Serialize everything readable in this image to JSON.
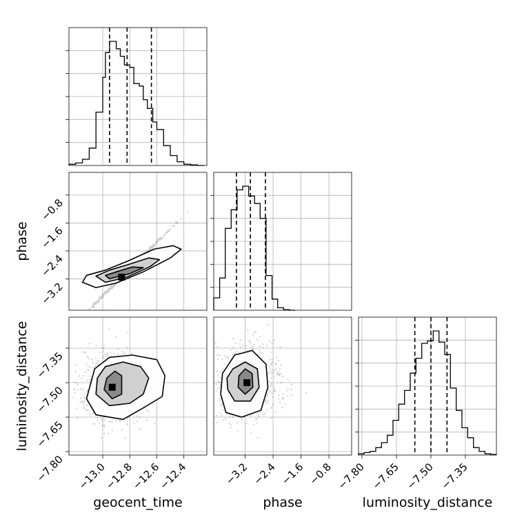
{
  "chart_data": {
    "type": "corner",
    "parameters": [
      "geocent_time",
      "phase",
      "luminosity_distance"
    ],
    "grid": true,
    "quantile_lines_style": "dashed",
    "ranges": {
      "geocent_time": [
        -13.25,
        -12.23
      ],
      "phase": [
        -4.1,
        -0.15
      ],
      "luminosity_distance": [
        -7.815,
        -7.215
      ]
    },
    "tick_labels": {
      "geocent_time": [
        "−13.0",
        "−12.8",
        "−12.6",
        "−12.4"
      ],
      "phase": [
        "−3.2",
        "−2.4",
        "−1.6",
        "−0.8"
      ],
      "luminosity_distance": [
        "−7.80",
        "−7.65",
        "−7.50",
        "−7.35"
      ]
    },
    "ticks": {
      "geocent_time": [
        -13.0,
        -12.8,
        -12.6,
        -12.4
      ],
      "phase": [
        -3.2,
        -2.4,
        -1.6,
        -0.8
      ],
      "luminosity_distance": [
        -7.8,
        -7.65,
        -7.5,
        -7.35
      ]
    },
    "quantiles": {
      "geocent_time": [
        -12.95,
        -12.82,
        -12.64
      ],
      "phase": [
        -3.45,
        -3.05,
        -2.62
      ],
      "luminosity_distance": [
        -7.57,
        -7.5,
        -7.43
      ]
    },
    "histograms": {
      "geocent_time": {
        "edges": [
          -13.25,
          -13.2,
          -13.15,
          -13.1,
          -13.05,
          -13.0,
          -12.98,
          -12.95,
          -12.9,
          -12.87,
          -12.84,
          -12.8,
          -12.77,
          -12.73,
          -12.7,
          -12.67,
          -12.63,
          -12.6,
          -12.55,
          -12.5,
          -12.45,
          -12.4,
          -12.35,
          -12.3,
          -12.25
        ],
        "counts": [
          0.01,
          0.02,
          0.05,
          0.14,
          0.43,
          0.71,
          0.91,
          1.0,
          0.94,
          0.88,
          0.81,
          0.79,
          0.66,
          0.64,
          0.53,
          0.46,
          0.35,
          0.29,
          0.16,
          0.08,
          0.03,
          0.01,
          0.005,
          0.0
        ]
      },
      "phase": {
        "edges": [
          -4.1,
          -3.93,
          -3.77,
          -3.6,
          -3.43,
          -3.27,
          -3.1,
          -2.93,
          -2.77,
          -2.6,
          -2.43,
          -2.27,
          -2.1,
          -1.93,
          -1.77
        ],
        "counts": [
          0.1,
          0.26,
          0.66,
          0.81,
          0.97,
          1.0,
          0.92,
          0.86,
          0.74,
          0.28,
          0.09,
          0.02,
          0.005,
          0.0
        ]
      },
      "luminosity_distance": {
        "edges": [
          -7.815,
          -7.79,
          -7.765,
          -7.74,
          -7.715,
          -7.69,
          -7.665,
          -7.64,
          -7.615,
          -7.59,
          -7.565,
          -7.54,
          -7.515,
          -7.49,
          -7.465,
          -7.44,
          -7.415,
          -7.39,
          -7.365,
          -7.34,
          -7.315,
          -7.29,
          -7.265,
          -7.24,
          -7.215
        ],
        "counts": [
          0.01,
          0.02,
          0.03,
          0.06,
          0.1,
          0.16,
          0.28,
          0.41,
          0.52,
          0.66,
          0.78,
          0.9,
          0.92,
          1.0,
          0.91,
          0.81,
          0.54,
          0.36,
          0.22,
          0.14,
          0.06,
          0.03,
          0.01,
          0.005
        ]
      }
    },
    "scatter_density": {
      "phase_vs_geocent_time": {
        "peak": [
          -12.86,
          -3.15
        ],
        "contour_levels": [
          [
            [
              -13.05,
              -3.45
            ],
            [
              -12.9,
              -3.32
            ],
            [
              -12.7,
              -3.0
            ],
            [
              -12.5,
              -2.6
            ],
            [
              -12.42,
              -2.35
            ],
            [
              -12.48,
              -2.25
            ],
            [
              -12.62,
              -2.35
            ],
            [
              -12.82,
              -2.7
            ],
            [
              -12.98,
              -2.95
            ],
            [
              -13.12,
              -3.1
            ],
            [
              -13.15,
              -3.3
            ]
          ],
          [
            [
              -12.98,
              -3.3
            ],
            [
              -12.82,
              -3.15
            ],
            [
              -12.65,
              -2.85
            ],
            [
              -12.58,
              -2.65
            ],
            [
              -12.66,
              -2.6
            ],
            [
              -12.82,
              -2.8
            ],
            [
              -12.95,
              -2.95
            ],
            [
              -13.05,
              -3.12
            ]
          ],
          [
            [
              -12.95,
              -3.2
            ],
            [
              -12.8,
              -3.05
            ],
            [
              -12.7,
              -2.88
            ],
            [
              -12.78,
              -2.86
            ],
            [
              -12.9,
              -3.0
            ],
            [
              -12.98,
              -3.1
            ]
          ]
        ]
      },
      "luminosity_distance_vs_geocent_time": {
        "peak": [
          -12.93,
          -7.52
        ],
        "contour_levels": [
          [
            [
              -13.12,
              -7.57
            ],
            [
              -13.05,
              -7.64
            ],
            [
              -12.85,
              -7.66
            ],
            [
              -12.7,
              -7.61
            ],
            [
              -12.56,
              -7.56
            ],
            [
              -12.54,
              -7.47
            ],
            [
              -12.6,
              -7.4
            ],
            [
              -12.78,
              -7.38
            ],
            [
              -12.95,
              -7.39
            ],
            [
              -13.06,
              -7.44
            ]
          ],
          [
            [
              -13.05,
              -7.55
            ],
            [
              -12.95,
              -7.6
            ],
            [
              -12.8,
              -7.59
            ],
            [
              -12.7,
              -7.55
            ],
            [
              -12.66,
              -7.48
            ],
            [
              -12.72,
              -7.43
            ],
            [
              -12.85,
              -7.41
            ],
            [
              -12.98,
              -7.43
            ],
            [
              -13.04,
              -7.48
            ]
          ],
          [
            [
              -12.99,
              -7.53
            ],
            [
              -12.93,
              -7.57
            ],
            [
              -12.86,
              -7.55
            ],
            [
              -12.86,
              -7.47
            ],
            [
              -12.91,
              -7.45
            ],
            [
              -12.97,
              -7.48
            ]
          ]
        ]
      },
      "luminosity_distance_vs_phase": {
        "peak": [
          -3.15,
          -7.5
        ],
        "contour_levels": [
          [
            [
              -3.9,
              -7.55
            ],
            [
              -3.75,
              -7.63
            ],
            [
              -3.3,
              -7.65
            ],
            [
              -2.75,
              -7.62
            ],
            [
              -2.55,
              -7.52
            ],
            [
              -2.6,
              -7.42
            ],
            [
              -3.0,
              -7.36
            ],
            [
              -3.5,
              -7.38
            ],
            [
              -3.85,
              -7.46
            ]
          ],
          [
            [
              -3.7,
              -7.53
            ],
            [
              -3.5,
              -7.58
            ],
            [
              -3.05,
              -7.58
            ],
            [
              -2.8,
              -7.52
            ],
            [
              -2.85,
              -7.44
            ],
            [
              -3.2,
              -7.41
            ],
            [
              -3.55,
              -7.44
            ],
            [
              -3.72,
              -7.48
            ]
          ],
          [
            [
              -3.4,
              -7.52
            ],
            [
              -3.2,
              -7.55
            ],
            [
              -2.98,
              -7.52
            ],
            [
              -3.0,
              -7.46
            ],
            [
              -3.2,
              -7.44
            ],
            [
              -3.38,
              -7.47
            ]
          ]
        ]
      }
    }
  }
}
